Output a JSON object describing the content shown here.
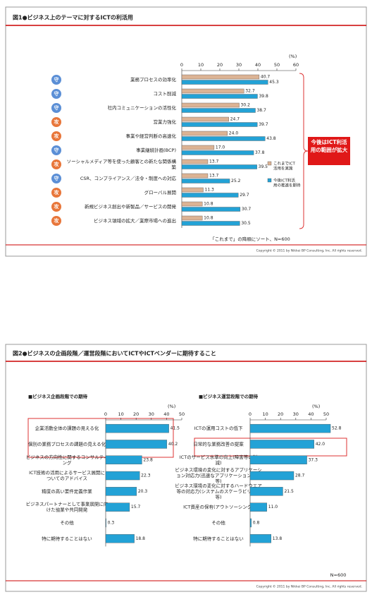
{
  "figure1": {
    "title": "図1●ビジネス上のテーマに対するICTの利活用",
    "callout": "今後はICT利活用の範囲が拡大",
    "note": "「これまで」の降順にソート、N=600",
    "copyright": "Copyright © 2011 by Nikkei BP Consulting, Inc. All rights reserved."
  },
  "figure2": {
    "title": "図2●ビジネスの企画段階／運営段階においてICTやICTベンダーに期待すること",
    "note": "N=600",
    "copyright": "Copyright © 2011 by Nikkei BP Consulting, Inc. All rights reserved."
  },
  "chart_data": [
    {
      "type": "bar",
      "unit_label": "(%)",
      "categories": [
        "業務プロセスの効率化",
        "コスト削減",
        "社内コミュニケーションの活性化",
        "営業力強化",
        "事業や経営判断の高速化",
        "事業継続計画(BCP)",
        "ソーシャルメディア等を使った顧客との新たな関係構築",
        "CSR、コンプライアンス／法令・制度への対応",
        "グローバル展開",
        "新規ビジネス創出や新製品／サービスの開発",
        "ビジネス領域の拡大／業際市場への進出"
      ],
      "badges": [
        "守",
        "守",
        "守",
        "攻",
        "攻",
        "守",
        "攻",
        "守",
        "攻",
        "攻",
        "攻"
      ],
      "badge_colors": {
        "守": "#5b8fd6",
        "攻": "#e8763a"
      },
      "series": [
        {
          "name": "これまでICT活用を実施",
          "color": "#dcb394",
          "values": [
            40.7,
            32.7,
            30.2,
            24.7,
            24.0,
            17.0,
            13.7,
            13.7,
            11.3,
            10.8,
            10.8
          ],
          "value_labels": [
            "40.7",
            "32.7",
            "30.2",
            "24.7",
            "24.0",
            "17.0",
            "13.7",
            "13.7",
            "11.3",
            "10.8",
            "10.8"
          ]
        },
        {
          "name": "今後ICT利活用の推進を期待",
          "color": "#23a2d6",
          "values": [
            45.3,
            39.8,
            38.7,
            39.7,
            43.8,
            37.8,
            39.5,
            25.2,
            29.7,
            30.7,
            30.5
          ]
        }
      ],
      "xlim": [
        0,
        60
      ],
      "xticks": [
        0,
        10,
        20,
        30,
        40,
        50,
        60
      ]
    },
    {
      "type": "bar",
      "title": "■ビジネス企画段階での期待",
      "unit_label": "(%)",
      "categories": [
        "企業活動全体の課題の見える化",
        "個別の業務プロセスの課題の見える化",
        "ビジネスの方向性に関するコンサルティング",
        "ICT技術の活用によるサービス展開についてのアドバイス",
        "精度の高い要件定義作業",
        "ビジネスパートナーとして事業展開に向けた協業や共同開発",
        "その他",
        "特に期待することはない"
      ],
      "values": [
        41.5,
        40.2,
        23.8,
        22.3,
        20.3,
        15.7,
        0.3,
        18.8
      ],
      "color": "#23a2d6",
      "xlim": [
        0,
        50
      ],
      "xticks": [
        0,
        10,
        20,
        30,
        40,
        50
      ]
    },
    {
      "type": "bar",
      "title": "■ビジネス運営段階での期待",
      "unit_label": "(%)",
      "categories": [
        "ICTの運用コストの低下",
        "日常的な業務改善の提案",
        "ICTのサービス水準の向上(障害等の削減)",
        "ビジネス環境の変化に対するアプリケーション対応力(迅速なアプリケーション修正等)",
        "ビジネス環境の変化に対するハードウエア等の対応力(システムのスケーラビリティ等)",
        "ICT資産の保有(アウトソーシング)",
        "その他",
        "特に期待することはない"
      ],
      "values": [
        52.8,
        42.0,
        37.3,
        28.7,
        21.5,
        11.0,
        0.8,
        13.8
      ],
      "value_labels": [
        "52.8",
        "42.0",
        "37.3",
        "28.7",
        "21.5",
        "11.0",
        "0.8",
        "13.8"
      ],
      "color": "#23a2d6",
      "xlim": [
        0,
        50
      ],
      "xticks": [
        0,
        10,
        20,
        30,
        40,
        50
      ]
    }
  ]
}
